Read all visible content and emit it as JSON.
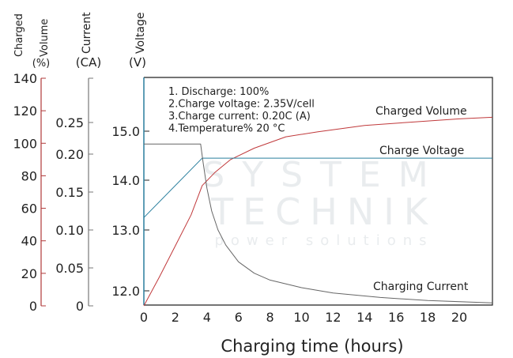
{
  "chart_data": {
    "type": "line",
    "title": "",
    "xlabel": "Charging time (hours)",
    "x_ticks": [
      0,
      2,
      4,
      6,
      8,
      10,
      12,
      14,
      16,
      18,
      20
    ],
    "xlim": [
      0,
      22.1
    ],
    "axes": {
      "volume": {
        "label_lines": [
          "Charged",
          "Volume",
          "(%)"
        ],
        "ticks": [
          0,
          20,
          40,
          60,
          80,
          100,
          120,
          140
        ],
        "ylim": [
          0,
          140
        ],
        "color": "#b03a3a"
      },
      "current": {
        "label_lines": [
          "Current",
          "(CA)"
        ],
        "ticks": [
          "0",
          "0.05",
          "0.10",
          "0.15",
          "0.20",
          "0.25"
        ],
        "color": "#777777"
      },
      "voltage": {
        "label_lines": [
          "Voltage",
          "(V)"
        ],
        "ticks": [
          "12.0",
          "13.0",
          "14.0",
          "15.0"
        ],
        "color": "#2a7f9e"
      }
    },
    "notes": [
      "1. Discharge: 100%",
      "2.Charge voltage: 2.35V/cell",
      "3.Charge current: 0.20C (A)",
      "4.Temperature% 20 °C"
    ],
    "series": [
      {
        "name": "Charged Volume",
        "axis": "volume",
        "color": "#c0393b",
        "x": [
          0,
          1,
          2,
          3,
          3.7,
          4.5,
          5.5,
          7,
          9,
          11,
          14,
          17,
          20,
          22.1
        ],
        "y": [
          0,
          18,
          37,
          56,
          74,
          82,
          90,
          97,
          104,
          107,
          111,
          113,
          115,
          116
        ]
      },
      {
        "name": "Charge Voltage",
        "axis": "voltage",
        "color": "#2a7f9e",
        "x": [
          0,
          3.7,
          22.1
        ],
        "y": [
          13.25,
          14.45,
          14.45
        ]
      },
      {
        "name": "Charging Current",
        "axis": "current",
        "color": "#666666",
        "x": [
          0,
          3.6,
          3.75,
          4,
          4.3,
          4.7,
          5.2,
          6,
          7,
          8,
          10,
          12,
          15,
          18,
          22.1
        ],
        "y": [
          0.216,
          0.216,
          0.19,
          0.155,
          0.125,
          0.1,
          0.08,
          0.058,
          0.043,
          0.034,
          0.024,
          0.017,
          0.011,
          0.007,
          0.004
        ]
      }
    ],
    "grid": false,
    "watermark": [
      "SYSTEM",
      "TECHNIK",
      "power solutions"
    ]
  }
}
